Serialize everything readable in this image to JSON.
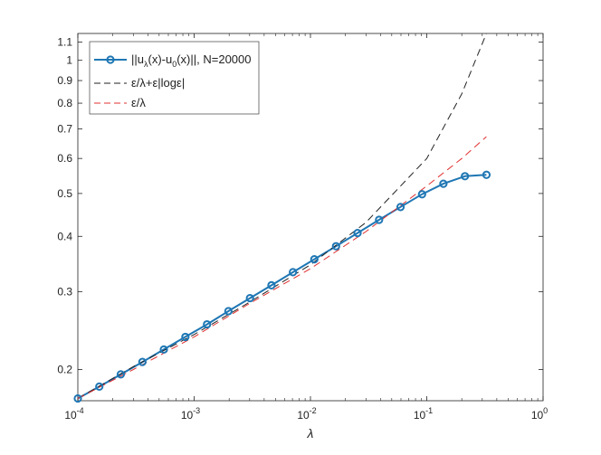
{
  "chart_data": {
    "type": "line",
    "title": "",
    "xlabel": "λ",
    "ylabel": "",
    "xscale": "log",
    "yscale": "log",
    "xlim": [
      0.0001,
      1
    ],
    "ylim": [
      0.17,
      1.15
    ],
    "x_ticks": [
      {
        "value": 0.0001,
        "mant": "10",
        "exp": "-4"
      },
      {
        "value": 0.001,
        "mant": "10",
        "exp": "-3"
      },
      {
        "value": 0.01,
        "mant": "10",
        "exp": "-2"
      },
      {
        "value": 0.1,
        "mant": "10",
        "exp": "-1"
      },
      {
        "value": 1,
        "mant": "10",
        "exp": "0"
      }
    ],
    "y_ticks": [
      {
        "value": 0.2,
        "label": "0.2"
      },
      {
        "value": 0.3,
        "label": "0.3"
      },
      {
        "value": 0.4,
        "label": "0.4"
      },
      {
        "value": 0.5,
        "label": "0.5"
      },
      {
        "value": 0.6,
        "label": "0.6"
      },
      {
        "value": 0.7,
        "label": "0.7"
      },
      {
        "value": 0.8,
        "label": "0.8"
      },
      {
        "value": 0.9,
        "label": "0.9"
      },
      {
        "value": 1.0,
        "label": "1"
      },
      {
        "value": 1.1,
        "label": "1.1"
      }
    ],
    "grid": false,
    "legend_position": "top-left",
    "series": [
      {
        "name": "||u_λ(x)-u_0(x)||, N=20000",
        "style": "solid-circle-markers",
        "color": "#1f77b4",
        "x": [
          0.0001,
          0.000153,
          0.000234,
          0.000359,
          0.000549,
          0.000841,
          0.00129,
          0.00197,
          0.00302,
          0.00462,
          0.00707,
          0.0108,
          0.0166,
          0.0254,
          0.0389,
          0.0595,
          0.0911,
          0.139,
          0.213,
          0.326
        ],
        "y": [
          0.172,
          0.183,
          0.195,
          0.208,
          0.222,
          0.237,
          0.253,
          0.271,
          0.29,
          0.31,
          0.332,
          0.355,
          0.38,
          0.407,
          0.436,
          0.466,
          0.498,
          0.526,
          0.547,
          0.551
        ]
      },
      {
        "name": "ε/λ+ε|logε|",
        "style": "dashed",
        "color": "#222222",
        "x": [
          0.0001,
          0.0003,
          0.001,
          0.003,
          0.01,
          0.03,
          0.1,
          0.2,
          0.326
        ],
        "y": [
          0.172,
          0.203,
          0.24,
          0.284,
          0.345,
          0.43,
          0.6,
          0.84,
          1.15
        ]
      },
      {
        "name": "ε/λ",
        "style": "dashed",
        "color": "#e03030",
        "x": [
          0.0001,
          0.0003,
          0.001,
          0.003,
          0.01,
          0.03,
          0.1,
          0.2,
          0.326
        ],
        "y": [
          0.172,
          0.2,
          0.237,
          0.282,
          0.338,
          0.41,
          0.52,
          0.6,
          0.672
        ]
      }
    ],
    "legend": [
      {
        "pre": "||u",
        "sub1": "λ",
        "mid": "(x)-u",
        "sub2": "0",
        "post": "(x)||, N=20000"
      },
      {
        "text": "ε/λ+ε|logε|"
      },
      {
        "text": "ε/λ"
      }
    ]
  }
}
